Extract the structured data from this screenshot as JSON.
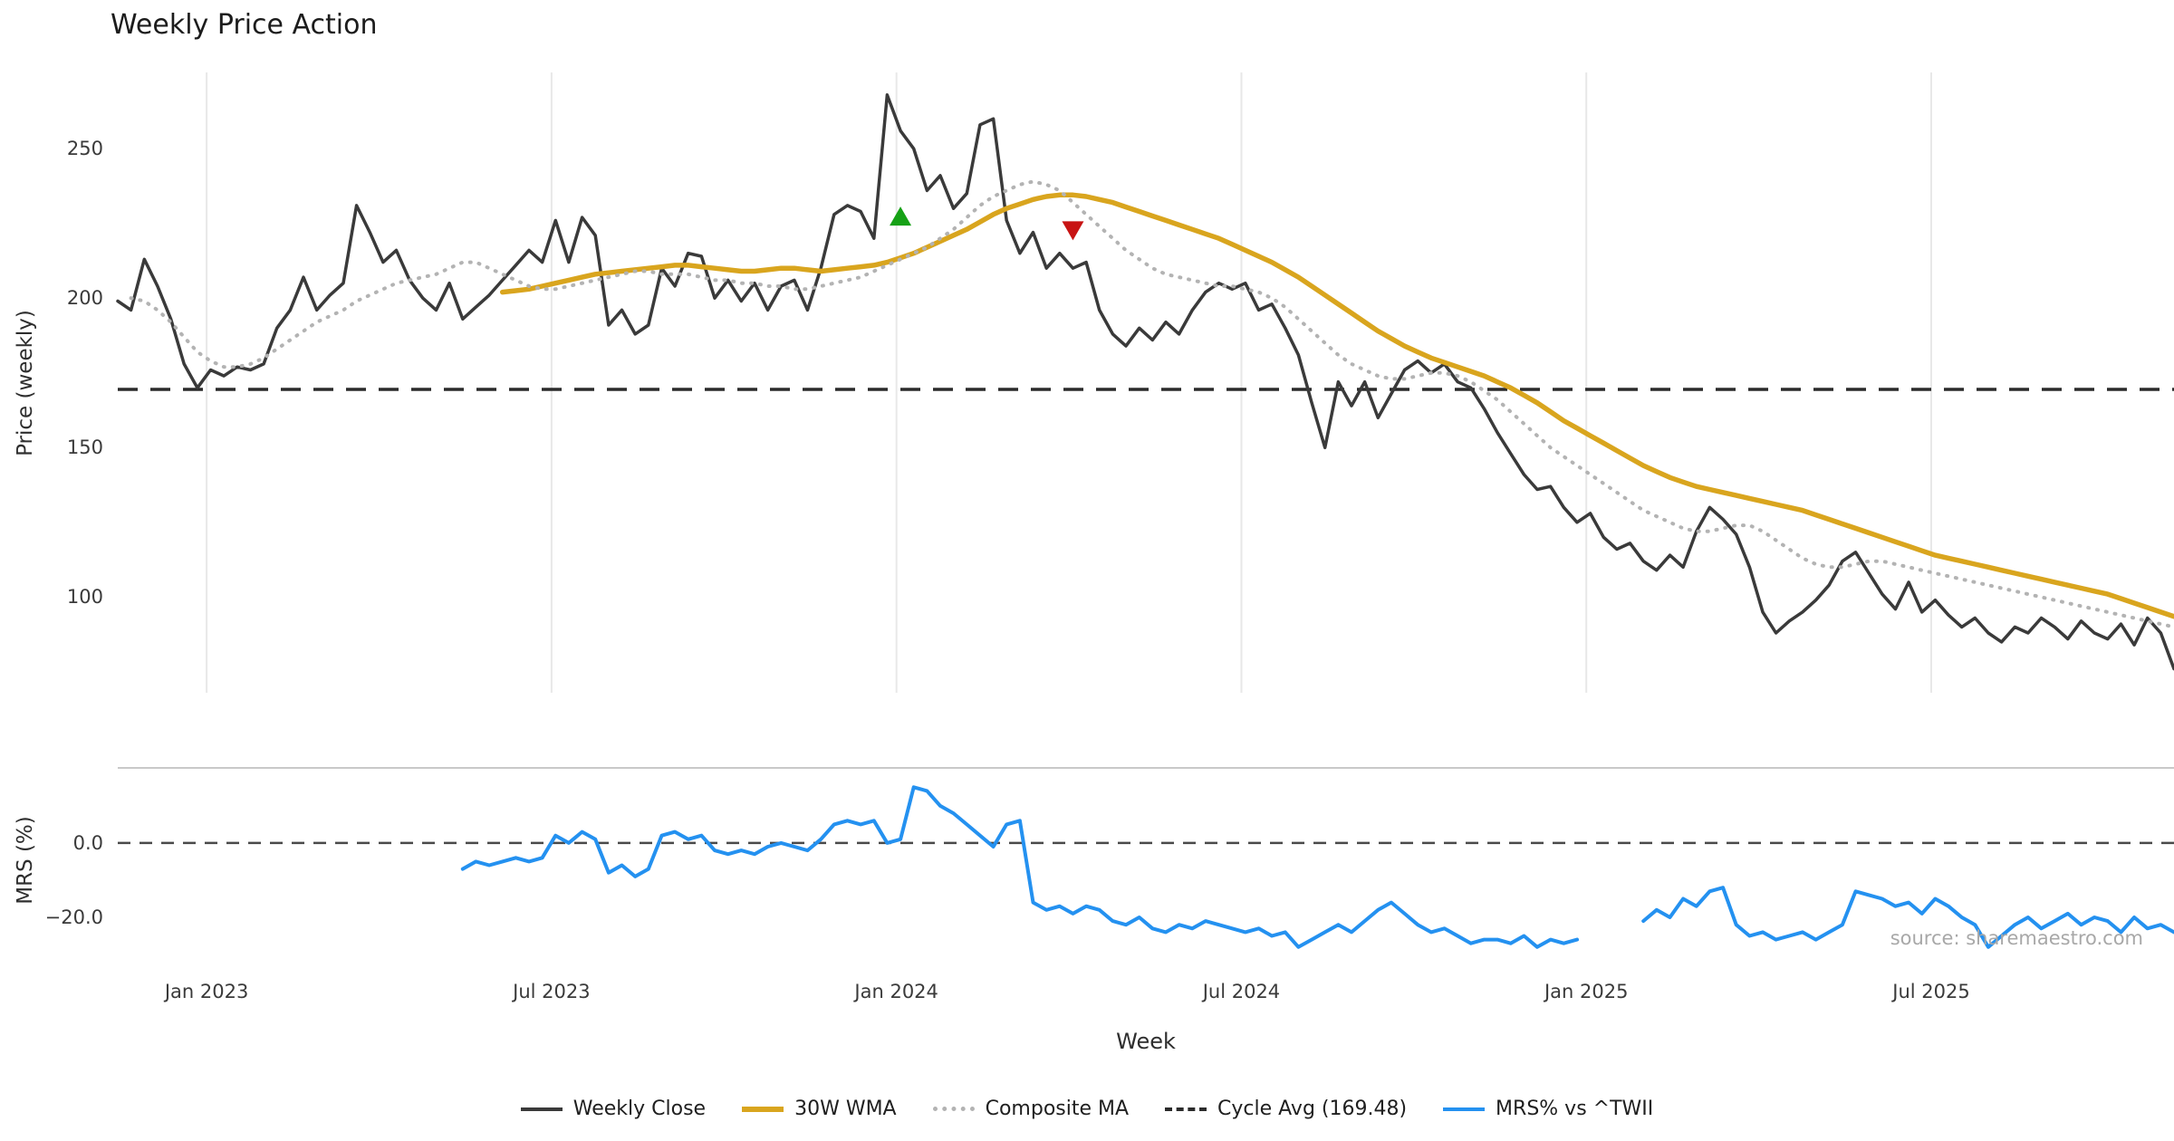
{
  "chart": {
    "title": "Weekly Price Action",
    "x_axis_label": "Week",
    "source_text": "source: sharemaestro.com",
    "main_panel": {
      "y_axis_label": "Price (weekly)"
    },
    "mrs_panel": {
      "y_axis_label": "MRS (%)"
    },
    "legend": [
      {
        "label": "Weekly Close",
        "color": "#3a3a3a",
        "style": "solid"
      },
      {
        "label": "30W WMA",
        "color": "#d9a51e",
        "style": "solid"
      },
      {
        "label": "Composite MA",
        "color": "#b3b3b3",
        "style": "dotted"
      },
      {
        "label": "Cycle Avg (169.48)",
        "color": "#2b2b2b",
        "style": "dashed"
      },
      {
        "label": "MRS% vs ^TWII",
        "color": "#2491f0",
        "style": "solid"
      }
    ]
  },
  "chart_data": {
    "type": "line",
    "title": "Weekly Price Action",
    "xlabel": "Week",
    "x_unit": "week_index",
    "grid": "vertical-only",
    "colors": {
      "grid": "#e8e8e8",
      "panel_separator": "#c9c9c9",
      "cycle_line": "#2b2b2b",
      "zero_line": "#4a4a4a"
    },
    "cycle_avg": 169.48,
    "main_ylim": [
      68,
      275.5
    ],
    "mrs_ylim": [
      -33.4,
      20.2
    ],
    "x_ticks": [
      {
        "index": 6.7,
        "label": "Jan 2023"
      },
      {
        "index": 32.7,
        "label": "Jul 2023"
      },
      {
        "index": 58.7,
        "label": "Jan 2024"
      },
      {
        "index": 84.7,
        "label": "Jul 2024"
      },
      {
        "index": 110.7,
        "label": "Jan 2025"
      },
      {
        "index": 136.7,
        "label": "Jul 2025"
      }
    ],
    "main_yticks": [
      {
        "value": 250,
        "label": "250"
      },
      {
        "value": 200,
        "label": "200"
      },
      {
        "value": 150,
        "label": "150"
      },
      {
        "value": 100,
        "label": "100"
      }
    ],
    "mrs_yticks": [
      {
        "value": 0,
        "label": "0.0"
      },
      {
        "value": -20,
        "label": "−20.0"
      }
    ],
    "series": [
      {
        "name": "Weekly Close",
        "panel": "main",
        "color": "#3a3a3a",
        "width": 3.5,
        "dash": null,
        "values": [
          199,
          196,
          213,
          204,
          193,
          178,
          170,
          176,
          174,
          177,
          176,
          178,
          190,
          196,
          207,
          196,
          201,
          205,
          231,
          222,
          212,
          216,
          206,
          200,
          196,
          205,
          193,
          197,
          201,
          206,
          211,
          216,
          212,
          226,
          212,
          227,
          221,
          191,
          196,
          188,
          191,
          210,
          204,
          215,
          214,
          200,
          206,
          199,
          205,
          196,
          204,
          206,
          196,
          210,
          228,
          231,
          229,
          220,
          268,
          256,
          250,
          236,
          241,
          230,
          235,
          258,
          260,
          226,
          215,
          222,
          210,
          215,
          210,
          212,
          196,
          188,
          184,
          190,
          186,
          192,
          188,
          196,
          202,
          205,
          203,
          205,
          196,
          198,
          190,
          181,
          165,
          150,
          172,
          164,
          172,
          160,
          168,
          176,
          179,
          175,
          178,
          172,
          170,
          163,
          155,
          148,
          141,
          136,
          137,
          130,
          125,
          128,
          120,
          116,
          118,
          112,
          109,
          114,
          110,
          122,
          130,
          126,
          121,
          110,
          95,
          88,
          92,
          95,
          99,
          104,
          112,
          115,
          108,
          101,
          96,
          105,
          95,
          99,
          94,
          90,
          93,
          88,
          85,
          90,
          88,
          93,
          90,
          86,
          92,
          88,
          86,
          91,
          84,
          93,
          88,
          76
        ]
      },
      {
        "name": "30W WMA",
        "panel": "main",
        "color": "#d9a51e",
        "width": 5.5,
        "dash": null,
        "values": [
          null,
          null,
          null,
          null,
          null,
          null,
          null,
          null,
          null,
          null,
          null,
          null,
          null,
          null,
          null,
          null,
          null,
          null,
          null,
          null,
          null,
          null,
          null,
          null,
          null,
          null,
          null,
          null,
          null,
          202,
          202.5,
          203,
          204,
          205,
          206,
          207,
          208,
          208.5,
          209,
          209.5,
          210,
          210.5,
          211,
          211,
          210.5,
          210,
          209.5,
          209,
          209,
          209.5,
          210,
          210,
          209.5,
          209,
          209.5,
          210,
          210.5,
          211,
          212,
          213.5,
          215,
          217,
          219,
          221,
          223,
          225.5,
          228,
          230,
          231.5,
          233,
          234,
          234.5,
          234.5,
          234,
          233,
          232,
          230.5,
          229,
          227.5,
          226,
          224.5,
          223,
          221.5,
          220,
          218,
          216,
          214,
          212,
          209.5,
          207,
          204,
          201,
          198,
          195,
          192,
          189,
          186.5,
          184,
          182,
          180,
          178.5,
          177,
          175.5,
          174,
          172,
          170,
          167.5,
          165,
          162,
          159,
          156.5,
          154,
          151.5,
          149,
          146.5,
          144,
          142,
          140,
          138.5,
          137,
          136,
          135,
          134,
          133,
          132,
          131,
          130,
          129,
          127.5,
          126,
          124.5,
          123,
          121.5,
          120,
          118.5,
          117,
          115.5,
          114,
          113,
          112,
          111,
          110,
          109,
          108,
          107,
          106,
          105,
          104,
          103,
          102,
          101,
          99.5,
          98,
          96.5,
          95,
          93.5
        ]
      },
      {
        "name": "Composite MA",
        "panel": "main",
        "color": "#b3b3b3",
        "width": 4,
        "dash": "1 9",
        "values": [
          null,
          200,
          199,
          196,
          192,
          187,
          182,
          179,
          177,
          177,
          178,
          180,
          183,
          186,
          189,
          192,
          194,
          196,
          199,
          201,
          203,
          205,
          206,
          207,
          208,
          210,
          212,
          212,
          210,
          208,
          206,
          204,
          203,
          203,
          204,
          205,
          206,
          207,
          208,
          209,
          209,
          208,
          208,
          208,
          207,
          206,
          206,
          205,
          205,
          204,
          204,
          203,
          203,
          204,
          205,
          206,
          207,
          209,
          211,
          213,
          215,
          217,
          220,
          223,
          227,
          231,
          234,
          236,
          238,
          239,
          238,
          236,
          232,
          228,
          224,
          220,
          216,
          213,
          210,
          208,
          207,
          206,
          205,
          204,
          204,
          203,
          202,
          200,
          197,
          193,
          189,
          185,
          181,
          178,
          176,
          174,
          173,
          173,
          174,
          175,
          175,
          174,
          172,
          169,
          166,
          162,
          158,
          154,
          150,
          147,
          144,
          141,
          138,
          135,
          132,
          129,
          127,
          125,
          123,
          122,
          122,
          123,
          124,
          124,
          122,
          119,
          116,
          113,
          111,
          110,
          110,
          111,
          112,
          112,
          111,
          110,
          109,
          108,
          107,
          106,
          105,
          104,
          103,
          102,
          101,
          100,
          99,
          98,
          97,
          96,
          95,
          94,
          93,
          92,
          91,
          90
        ]
      },
      {
        "name": "MRS% vs ^TWII",
        "panel": "mrs",
        "color": "#2491f0",
        "width": 4,
        "dash": null,
        "values": [
          null,
          null,
          null,
          null,
          null,
          null,
          null,
          null,
          null,
          null,
          null,
          null,
          null,
          null,
          null,
          null,
          null,
          null,
          null,
          null,
          null,
          null,
          null,
          null,
          null,
          null,
          -7,
          -5,
          -6,
          -5,
          -4,
          -5,
          -4,
          2,
          0,
          3,
          1,
          -8,
          -6,
          -9,
          -7,
          2,
          3,
          1,
          2,
          -2,
          -3,
          -2,
          -3,
          -1,
          0,
          -1,
          -2,
          1,
          5,
          6,
          5,
          6,
          0,
          1,
          15,
          14,
          10,
          8,
          5,
          2,
          -1,
          5,
          6,
          -16,
          -18,
          -17,
          -19,
          -17,
          -18,
          -21,
          -22,
          -20,
          -23,
          -24,
          -22,
          -23,
          -21,
          -22,
          -23,
          -24,
          -23,
          -25,
          -24,
          -28,
          -26,
          -24,
          -22,
          -24,
          -21,
          -18,
          -16,
          -19,
          -22,
          -24,
          -23,
          -25,
          -27,
          -26,
          -26,
          -27,
          -25,
          -28,
          -26,
          -27,
          -26,
          null,
          null,
          null,
          null,
          -21,
          -18,
          -20,
          -15,
          -17,
          -13,
          -12,
          -22,
          -25,
          -24,
          -26,
          -25,
          -24,
          -26,
          -24,
          -22,
          -13,
          -14,
          -15,
          -17,
          -16,
          -19,
          -15,
          -17,
          -20,
          -22,
          -28,
          -25,
          -22,
          -20,
          -23,
          -21,
          -19,
          -22,
          -20,
          -21,
          -24,
          -20,
          -23,
          -22,
          -24
        ]
      }
    ],
    "markers": [
      {
        "name": "buy-signal",
        "shape": "triangle-up",
        "color": "#16a116",
        "index": 59,
        "value": 227
      },
      {
        "name": "sell-signal",
        "shape": "triangle-down",
        "color": "#c81414",
        "index": 72,
        "value": 223
      }
    ]
  }
}
